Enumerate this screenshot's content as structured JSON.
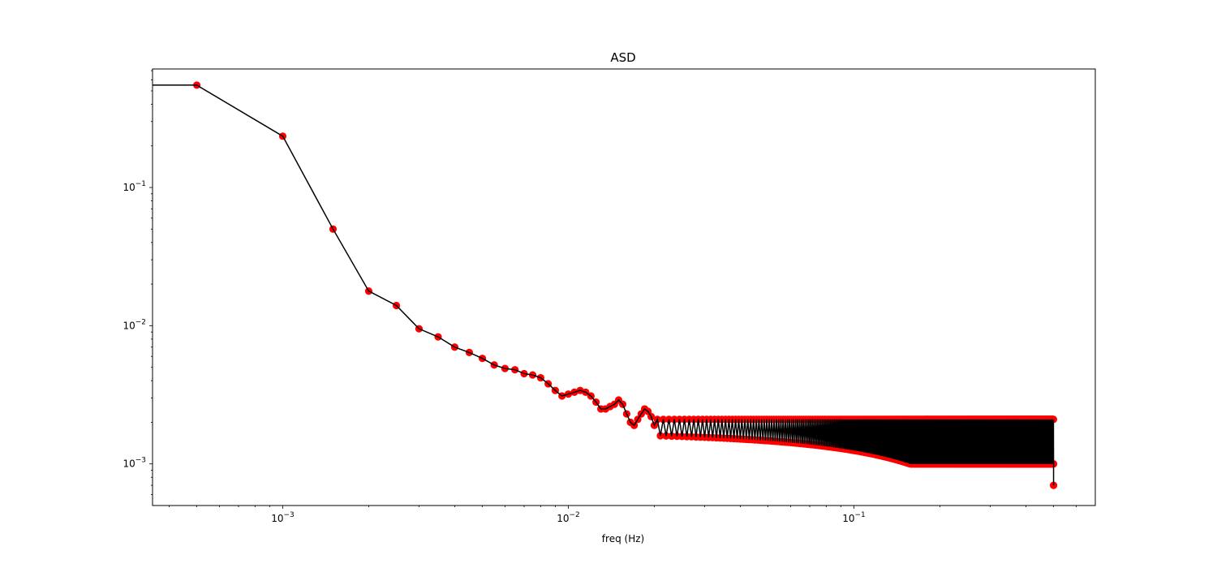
{
  "chart_data": {
    "type": "line",
    "title": "ASD",
    "xlabel": "freq (Hz)",
    "ylabel": "",
    "xscale": "log",
    "yscale": "log",
    "xlim": [
      0.00035,
      0.7
    ],
    "ylim": [
      0.0005,
      0.72
    ],
    "grid": false,
    "line_color": "#000000",
    "marker_color": "#ff0000",
    "x_ticks": [
      {
        "value": 0.001,
        "base": "10",
        "exp": "−3"
      },
      {
        "value": 0.01,
        "base": "10",
        "exp": "−2"
      },
      {
        "value": 0.1,
        "base": "10",
        "exp": "−1"
      }
    ],
    "y_ticks": [
      {
        "value": 0.1,
        "base": "10",
        "exp": "−1"
      },
      {
        "value": 0.01,
        "base": "10",
        "exp": "−2"
      },
      {
        "value": 0.001,
        "base": "10",
        "exp": "−3"
      }
    ],
    "series": [
      {
        "x": [
          0.0001,
          0.0005,
          0.001,
          0.0015,
          0.002,
          0.0025,
          0.003,
          0.0035,
          0.004,
          0.0045,
          0.005,
          0.0055,
          0.006,
          0.0065,
          0.007,
          0.0075,
          0.008,
          0.0085,
          0.009,
          0.0095,
          0.01,
          0.0105,
          0.011,
          0.0115,
          0.012,
          0.0125,
          0.013,
          0.0135,
          0.014,
          0.0145,
          0.015,
          0.0155,
          0.016,
          0.0165,
          0.017,
          0.0175,
          0.018,
          0.0185,
          0.019,
          0.0195,
          0.02
        ],
        "y": [
          0.55,
          0.55,
          0.235,
          0.05,
          0.0178,
          0.014,
          0.0095,
          0.0083,
          0.007,
          0.0064,
          0.0058,
          0.0052,
          0.0049,
          0.0048,
          0.0045,
          0.0044,
          0.0042,
          0.0038,
          0.0034,
          0.0031,
          0.0032,
          0.0033,
          0.0034,
          0.0033,
          0.0031,
          0.0028,
          0.0025,
          0.0025,
          0.0026,
          0.0027,
          0.0029,
          0.0027,
          0.0023,
          0.002,
          0.0019,
          0.0021,
          0.0023,
          0.0025,
          0.0024,
          0.0022,
          0.0019
        ],
        "high_frequency_oscillation": {
          "x_start": 0.0205,
          "x_end": 0.5,
          "x_step": 0.0005,
          "upper_envelope": 0.0021,
          "lower_envelope_start": 0.0016,
          "lower_envelope_end": 0.001
        },
        "last_point": {
          "x": 0.5,
          "y": 0.0007
        }
      }
    ]
  }
}
